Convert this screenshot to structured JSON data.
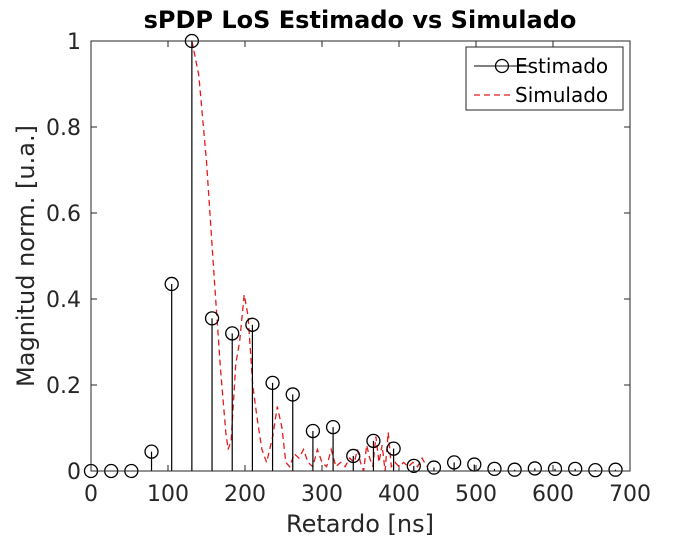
{
  "chart_data": {
    "type": "line",
    "title": "sPDP LoS Estimado vs Simulado",
    "xlabel": "Retardo [ns]",
    "ylabel": "Magnitud norm. [u.a.]",
    "xlim": [
      0,
      700
    ],
    "ylim": [
      0,
      1
    ],
    "xticks": [
      0,
      100,
      200,
      300,
      400,
      500,
      600,
      700
    ],
    "yticks": [
      0,
      0.2,
      0.4,
      0.6,
      0.8,
      1
    ],
    "ytick_labels": [
      "0",
      "0.2",
      "0.4",
      "0.6",
      "0.8",
      "1"
    ],
    "grid": false,
    "legend": "top-right",
    "series": [
      {
        "name": "Estimado",
        "style": "stem",
        "color": "#000000",
        "marker": "circle",
        "x": [
          0,
          26.2,
          52.4,
          78.6,
          104.8,
          131,
          157.2,
          183.4,
          209.6,
          235.8,
          262,
          288.2,
          314.4,
          340.6,
          366.8,
          393,
          419.2,
          445.4,
          471.6,
          497.8,
          524,
          550.2,
          576.4,
          602.6,
          628.8,
          655,
          681.2
        ],
        "y": [
          0,
          0,
          0,
          0.045,
          0.435,
          1.0,
          0.355,
          0.32,
          0.34,
          0.205,
          0.178,
          0.093,
          0.102,
          0.035,
          0.07,
          0.052,
          0.012,
          0.008,
          0.02,
          0.015,
          0.005,
          0.003,
          0.006,
          0.005,
          0.005,
          0.002,
          0.003
        ]
      },
      {
        "name": "Simulado",
        "style": "dashed",
        "color": "#e41a1c",
        "x": [
          131,
          140,
          150,
          160,
          168,
          175,
          178,
          182,
          188,
          193,
          199,
          204,
          210,
          216,
          222,
          228,
          236,
          242,
          248,
          253,
          258,
          264,
          270,
          276,
          282,
          288,
          294,
          300,
          306,
          312,
          318,
          324,
          330,
          336,
          342,
          346,
          350,
          354,
          358,
          362,
          366,
          370,
          374,
          378,
          382,
          386,
          390,
          395,
          400,
          406,
          412,
          418,
          424,
          430,
          436
        ],
        "y": [
          1.0,
          0.92,
          0.72,
          0.45,
          0.24,
          0.09,
          0.05,
          0.07,
          0.25,
          0.3,
          0.41,
          0.36,
          0.2,
          0.12,
          0.05,
          0.02,
          0.08,
          0.15,
          0.1,
          0.02,
          0.01,
          0.04,
          0.03,
          0.05,
          0.02,
          0.01,
          0.05,
          0.02,
          0.01,
          0.05,
          0.01,
          0.02,
          0.01,
          0.03,
          0.02,
          0.05,
          0.02,
          0.0,
          0.06,
          0.03,
          0.01,
          0.08,
          0.02,
          0.06,
          0.0,
          0.09,
          0.01,
          0.02,
          0.01,
          0.02,
          0.01,
          0.02,
          0.01,
          0.03,
          0.01
        ]
      }
    ]
  }
}
